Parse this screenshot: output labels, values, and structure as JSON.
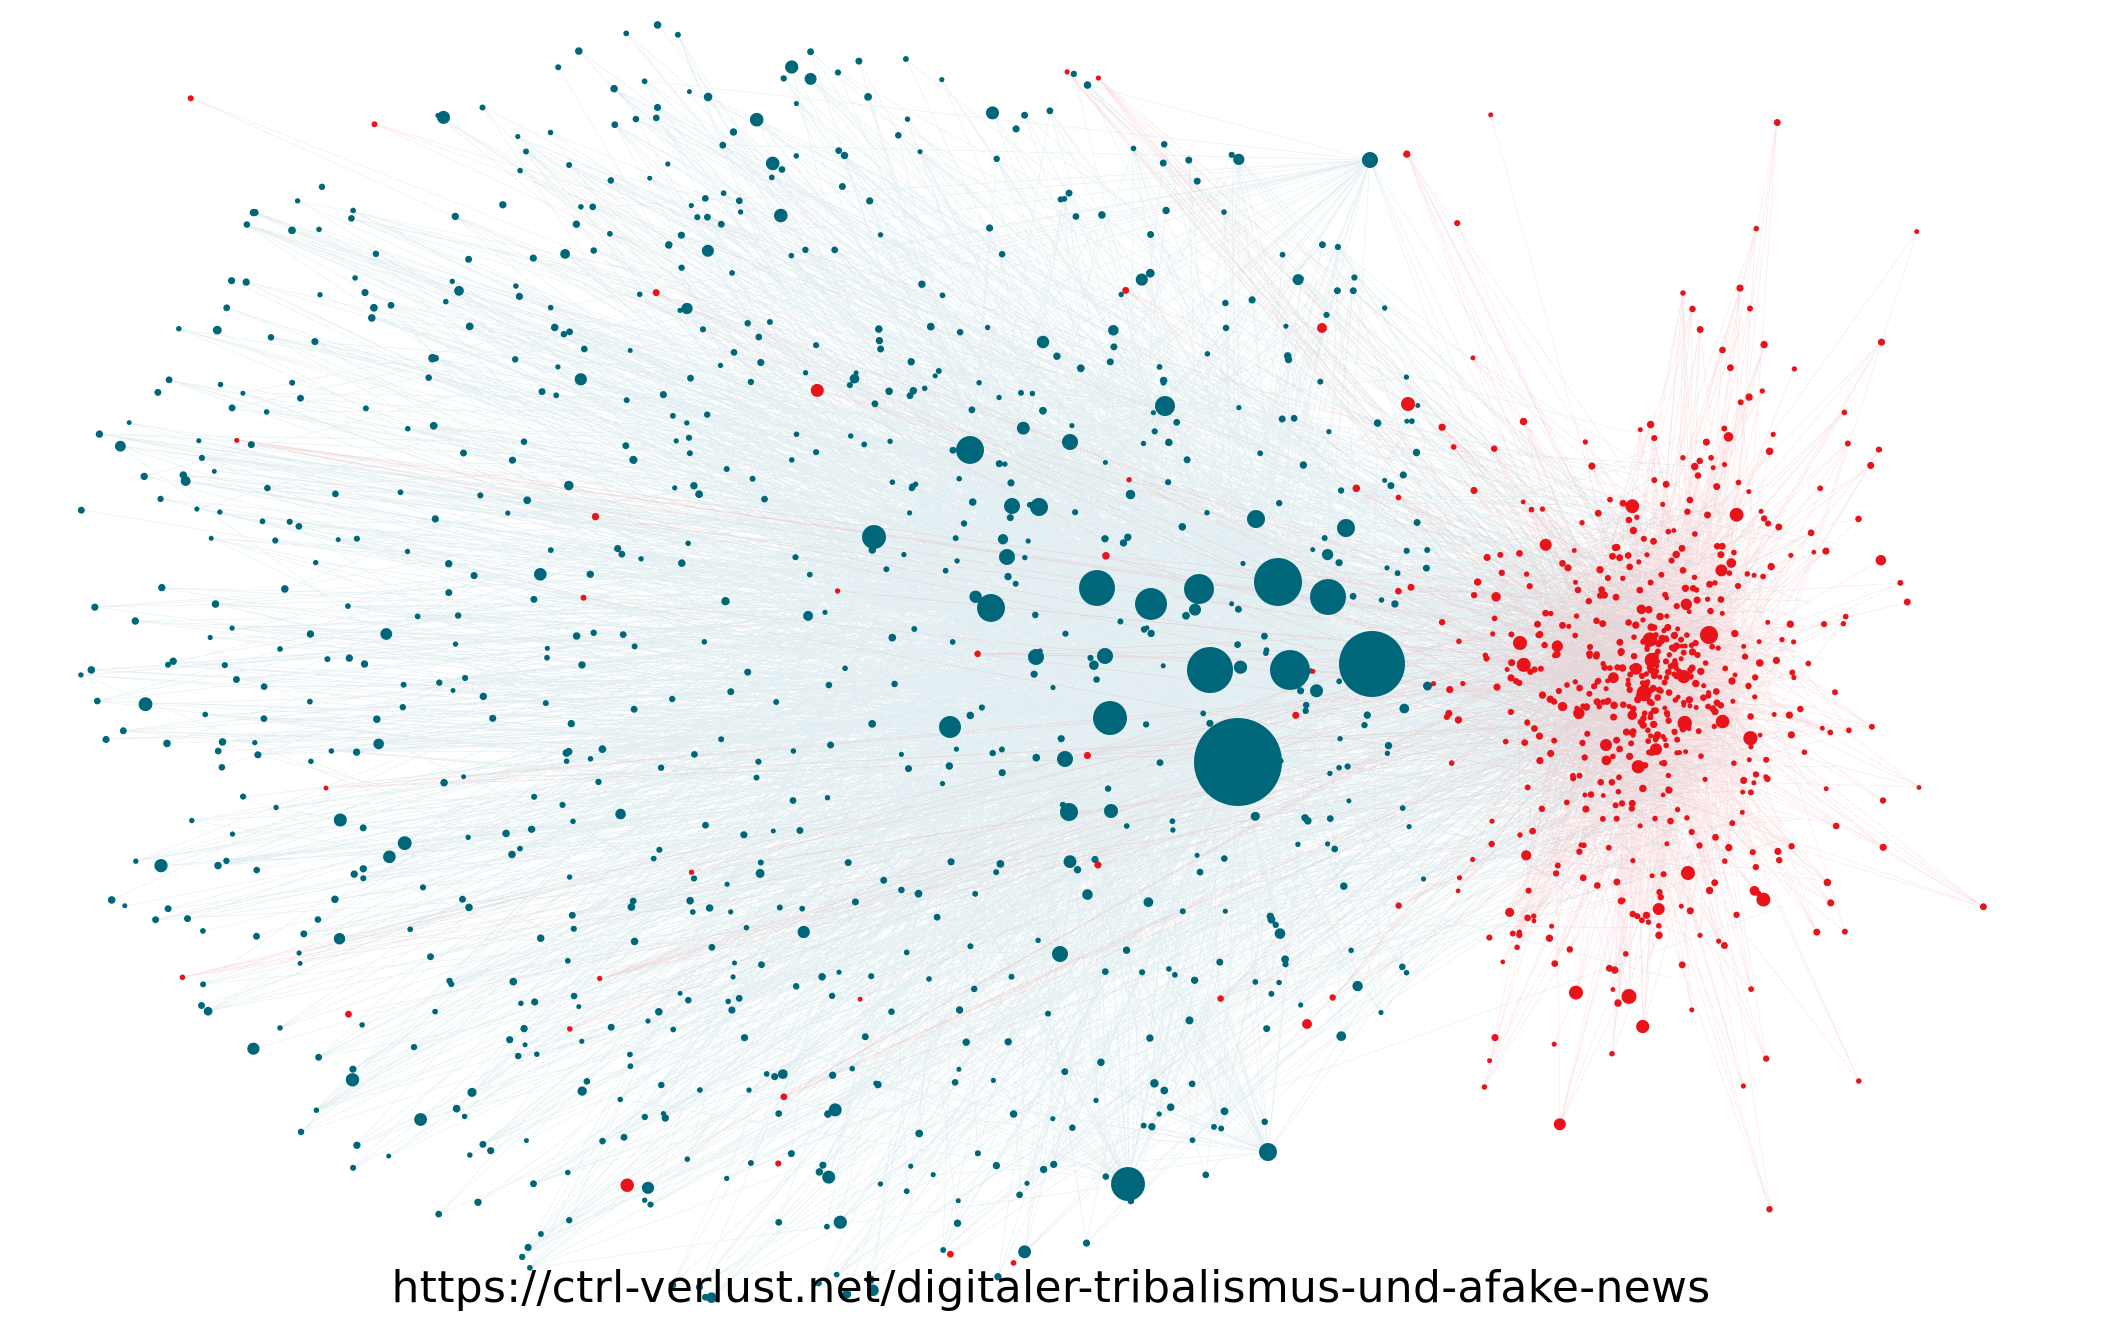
{
  "caption": "https://ctrl-verlust.net/digitaler-tribalismus-und-afake-news",
  "colors": {
    "background": "#ffffff",
    "cluster_teal": "#00667a",
    "cluster_red": "#e8141a",
    "edge_teal": "#4d97a6",
    "edge_red": "#f2727a",
    "caption_text": "#000000"
  },
  "chart_data": {
    "type": "network",
    "groups": [
      {
        "key": "teal",
        "color": "#00667a",
        "position": "left / center"
      },
      {
        "key": "red",
        "color": "#e8141a",
        "position": "right"
      }
    ],
    "legend": "none",
    "axes": "none"
  }
}
